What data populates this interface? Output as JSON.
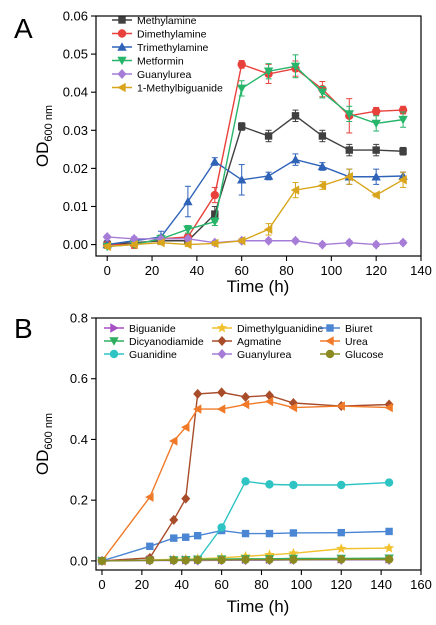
{
  "chart_data": [
    {
      "panel": "A",
      "type": "line",
      "xlabel": "Time (h)",
      "ylabel": "OD",
      "ylabel_sub": "600 nm",
      "xlim": [
        -5,
        140
      ],
      "ylim": [
        -0.003,
        0.06
      ],
      "xticks": [
        0,
        20,
        40,
        60,
        80,
        100,
        120,
        140
      ],
      "yticks": [
        0.0,
        0.01,
        0.02,
        0.03,
        0.04,
        0.05,
        0.06
      ],
      "ytick_labels": [
        "0.00",
        "0.01",
        "0.02",
        "0.03",
        "0.04",
        "0.05",
        "0.06"
      ],
      "legend_position": "top-left",
      "x": [
        0,
        12,
        24,
        36,
        48,
        60,
        72,
        84,
        96,
        108,
        120,
        132
      ],
      "series": [
        {
          "name": "Methylamine",
          "color": "#404040",
          "marker": "square",
          "values": [
            0.0,
            0.0005,
            0.001,
            0.001,
            0.008,
            0.031,
            0.0285,
            0.0338,
            0.0285,
            0.0248,
            0.0248,
            0.0245
          ],
          "errors": [
            0.001,
            0.001,
            0.001,
            0.001,
            0.002,
            0.001,
            0.0015,
            0.0015,
            0.0015,
            0.0015,
            0.0015,
            0.001
          ]
        },
        {
          "name": "Dimethylamine",
          "color": "#e8403b",
          "marker": "circle",
          "values": [
            0.0,
            0.0,
            0.0015,
            0.002,
            0.013,
            0.0473,
            0.0448,
            0.0462,
            0.0408,
            0.0338,
            0.035,
            0.0353
          ],
          "errors": [
            0.001,
            0.001,
            0.001,
            0.001,
            0.002,
            0.001,
            0.0025,
            0.002,
            0.002,
            0.0045,
            0.001,
            0.001
          ]
        },
        {
          "name": "Trimethylamine",
          "color": "#2f63b8",
          "marker": "triangle-up",
          "values": [
            0.0,
            0.001,
            0.002,
            0.0113,
            0.0218,
            0.017,
            0.018,
            0.0223,
            0.0205,
            0.0178,
            0.0178,
            0.018
          ],
          "errors": [
            0.001,
            0.001,
            0.0015,
            0.004,
            0.001,
            0.004,
            0.001,
            0.0015,
            0.001,
            0.002,
            0.002,
            0.001
          ]
        },
        {
          "name": "Metformin",
          "color": "#27b56a",
          "marker": "triangle-down",
          "values": [
            -0.0005,
            0.0,
            0.0015,
            0.004,
            0.006,
            0.041,
            0.0455,
            0.0468,
            0.04,
            0.0343,
            0.0318,
            0.0328
          ],
          "errors": [
            0.0005,
            0.0005,
            0.001,
            0.001,
            0.001,
            0.002,
            0.002,
            0.003,
            0.0015,
            0.002,
            0.002,
            0.002
          ]
        },
        {
          "name": "Guanylurea",
          "color": "#a67cd6",
          "marker": "diamond",
          "values": [
            0.002,
            0.0015,
            0.0015,
            0.0015,
            0.0005,
            0.001,
            0.001,
            0.001,
            0.0,
            0.0005,
            0.0,
            0.0005
          ],
          "errors": [
            0.0005,
            0.0005,
            0.0005,
            0.0005,
            0.0005,
            0.0005,
            0.0005,
            0.0005,
            0.0005,
            0.0005,
            0.0005,
            0.0005
          ]
        },
        {
          "name": "1-Methylbiguanide",
          "color": "#d8a51c",
          "marker": "triangle-left",
          "values": [
            -0.0005,
            0.0,
            0.0005,
            0.0,
            0.0003,
            0.001,
            0.004,
            0.0143,
            0.0155,
            0.0178,
            0.013,
            0.017
          ],
          "errors": [
            0.0005,
            0.0005,
            0.0005,
            0.0005,
            0.0005,
            0.0005,
            0.0015,
            0.002,
            0.001,
            0.002,
            0.0005,
            0.002
          ]
        }
      ]
    },
    {
      "panel": "B",
      "type": "line",
      "xlabel": "Time (h)",
      "ylabel": "OD",
      "ylabel_sub": "600 nm",
      "xlim": [
        -3,
        160
      ],
      "ylim": [
        -0.03,
        0.8
      ],
      "xticks": [
        0,
        20,
        40,
        60,
        80,
        100,
        120,
        140,
        160
      ],
      "yticks": [
        0.0,
        0.2,
        0.4,
        0.6,
        0.8
      ],
      "ytick_labels": [
        "0.0",
        "0.2",
        "0.4",
        "0.6",
        "0.8"
      ],
      "legend_position": "top",
      "legend_columns": 3,
      "series": [
        {
          "name": "Biguanide",
          "color": "#a64ec4",
          "marker": "triangle-right",
          "x": [
            0,
            24,
            36,
            42,
            48,
            60,
            72,
            84,
            96,
            120,
            144
          ],
          "values": [
            0.0,
            0.003,
            0.003,
            0.003,
            0.004,
            0.004,
            0.005,
            0.005,
            0.005,
            0.006,
            0.006
          ]
        },
        {
          "name": "Dimethylguanidine",
          "color": "#f2c12e",
          "marker": "star",
          "x": [
            0,
            24,
            36,
            42,
            48,
            60,
            72,
            84,
            96,
            120,
            144
          ],
          "values": [
            0.0,
            0.003,
            0.005,
            0.006,
            0.007,
            0.01,
            0.015,
            0.02,
            0.025,
            0.04,
            0.042
          ]
        },
        {
          "name": "Biuret",
          "color": "#4a86d4",
          "marker": "square",
          "x": [
            0,
            24,
            36,
            42,
            48,
            60,
            72,
            84,
            96,
            120,
            144
          ],
          "values": [
            0.0,
            0.048,
            0.075,
            0.078,
            0.083,
            0.1,
            0.09,
            0.09,
            0.092,
            0.093,
            0.097
          ]
        },
        {
          "name": "Dicyanodiamide",
          "color": "#2fae60",
          "marker": "triangle-down",
          "x": [
            0,
            24,
            36,
            42,
            48,
            60,
            72,
            84,
            96,
            120,
            144
          ],
          "values": [
            0.0,
            0.002,
            0.003,
            0.004,
            0.005,
            0.006,
            0.007,
            0.007,
            0.008,
            0.008,
            0.009
          ]
        },
        {
          "name": "Agmatine",
          "color": "#a84c2a",
          "marker": "diamond",
          "x": [
            0,
            24,
            36,
            42,
            48,
            60,
            72,
            84,
            96,
            120,
            144
          ],
          "values": [
            0.0,
            0.01,
            0.135,
            0.205,
            0.55,
            0.555,
            0.54,
            0.545,
            0.52,
            0.51,
            0.515
          ]
        },
        {
          "name": "Urea",
          "color": "#f07a28",
          "marker": "triangle-left",
          "x": [
            0,
            24,
            36,
            42,
            48,
            60,
            72,
            84,
            96,
            120,
            144
          ],
          "values": [
            0.0,
            0.21,
            0.395,
            0.44,
            0.5,
            0.5,
            0.515,
            0.525,
            0.505,
            0.51,
            0.505
          ]
        },
        {
          "name": "Guanidine",
          "color": "#2ec4c4",
          "marker": "circle",
          "x": [
            0,
            24,
            36,
            42,
            48,
            60,
            72,
            84,
            96,
            120,
            144
          ],
          "values": [
            0.0,
            0.002,
            0.002,
            0.003,
            0.003,
            0.11,
            0.262,
            0.252,
            0.25,
            0.25,
            0.258
          ]
        },
        {
          "name": "Guanylurea",
          "color": "#a67cd6",
          "marker": "diamond",
          "x": [
            0,
            24,
            36,
            42,
            48,
            60,
            72,
            84,
            96,
            120,
            144
          ],
          "values": [
            0.0,
            0.001,
            0.001,
            0.001,
            0.001,
            0.002,
            0.002,
            0.002,
            0.003,
            0.003,
            0.003
          ]
        },
        {
          "name": "Glucose",
          "color": "#8a8a20",
          "marker": "circle",
          "x": [
            0,
            24,
            36,
            42,
            48,
            60,
            72,
            84,
            96,
            120,
            144
          ],
          "values": [
            0.0,
            0.002,
            0.002,
            0.002,
            0.003,
            0.003,
            0.004,
            0.004,
            0.004,
            0.005,
            0.005
          ]
        }
      ]
    }
  ]
}
